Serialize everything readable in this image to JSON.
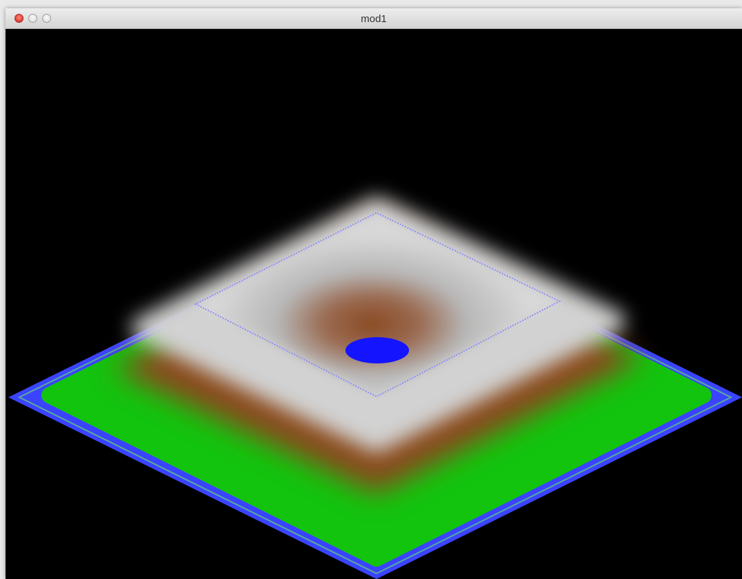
{
  "window": {
    "title": "mod1"
  }
}
